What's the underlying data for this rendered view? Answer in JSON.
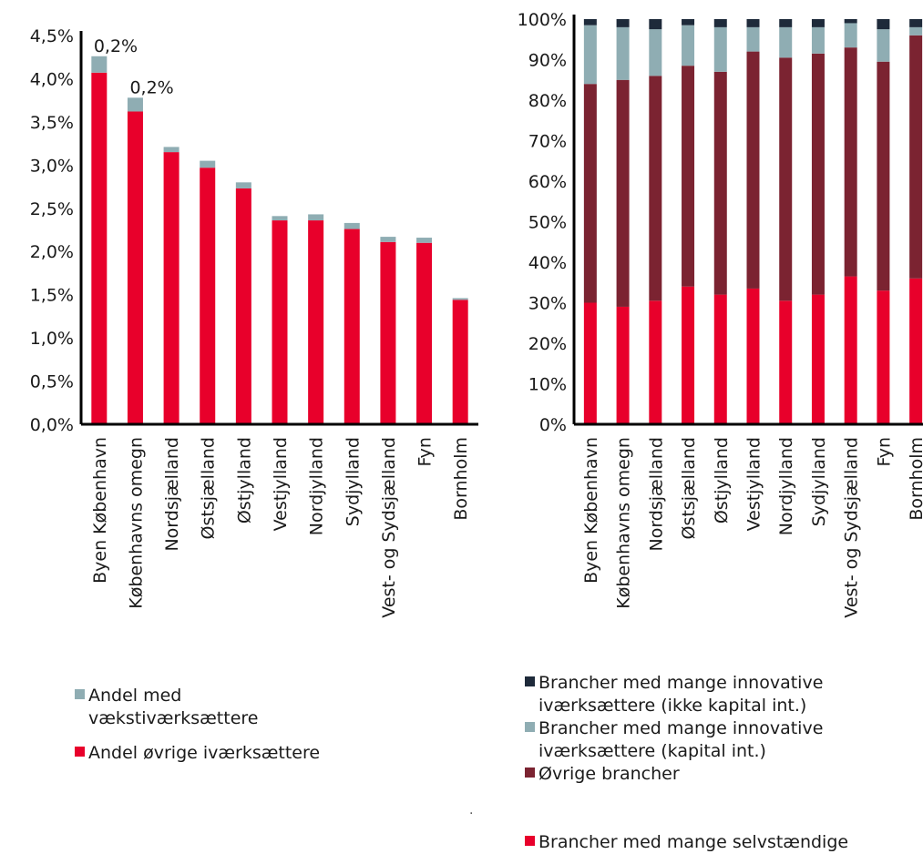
{
  "colors": {
    "red": "#e8002b",
    "teal": "#8fadb3",
    "maroon": "#7b2331",
    "navy": "#1e2a3a",
    "axis": "#000000"
  },
  "chart_data": [
    {
      "type": "bar",
      "stacked": true,
      "categories": [
        "Byen København",
        "Københavns omegn",
        "Nordsjælland",
        "Østsjælland",
        "Østjylland",
        "Vestjylland",
        "Nordjylland",
        "Sydjylland",
        "Vest- og Sydsjælland",
        "Fyn",
        "Bornholm"
      ],
      "series": [
        {
          "name": "Andel øvrige iværksættere",
          "color": "#e8002b",
          "values": [
            4.07,
            3.62,
            3.15,
            2.97,
            2.73,
            2.36,
            2.36,
            2.26,
            2.11,
            2.1,
            1.44
          ]
        },
        {
          "name": "Andel med vækstiværksættere",
          "color": "#8fadb3",
          "values": [
            0.19,
            0.16,
            0.06,
            0.08,
            0.07,
            0.05,
            0.07,
            0.07,
            0.06,
            0.06,
            0.02
          ]
        }
      ],
      "annotations": [
        {
          "category": "Byen København",
          "text": "0,2%"
        },
        {
          "category": "Københavns omegn",
          "text": "0,2%"
        }
      ],
      "yticks": [
        "0,0%",
        "0,5%",
        "1,0%",
        "1,5%",
        "2,0%",
        "2,5%",
        "3,0%",
        "3,5%",
        "4,0%",
        "4,5%"
      ],
      "ylim": [
        0,
        4.5
      ],
      "legend_order": [
        "Andel med vækstiværksættere",
        "Andel øvrige iværksættere"
      ],
      "legend_placement": "bottom"
    },
    {
      "type": "bar",
      "stacked": true,
      "percent": true,
      "categories": [
        "Byen København",
        "Københavns omegn",
        "Nordsjælland",
        "Østsjælland",
        "Østjylland",
        "Vestjylland",
        "Nordjylland",
        "Sydjylland",
        "Vest- og Sydsjælland",
        "Fyn",
        "Bornholm"
      ],
      "series": [
        {
          "name": "Brancher med mange selvstændige",
          "color": "#e8002b",
          "values": [
            30,
            29,
            30.5,
            34,
            32,
            33.5,
            30.5,
            32,
            36.5,
            33,
            36
          ]
        },
        {
          "name": "Øvrige brancher",
          "color": "#7b2331",
          "values": [
            54,
            56,
            55.5,
            54.5,
            55,
            58.5,
            60,
            59.5,
            56.5,
            56.5,
            60
          ]
        },
        {
          "name": "Brancher med mange innovative iværksættere (kapital int.)",
          "color": "#8fadb3",
          "values": [
            14.5,
            13,
            11.5,
            10,
            11,
            6,
            7.5,
            6.5,
            6,
            8,
            2
          ]
        },
        {
          "name": "Brancher med mange innovative iværksættere (ikke kapital int.)",
          "color": "#1e2a3a",
          "values": [
            1.5,
            2,
            2.5,
            1.5,
            2,
            2,
            2,
            2,
            1,
            2.5,
            2
          ]
        }
      ],
      "yticks": [
        "0%",
        "10%",
        "20%",
        "30%",
        "40%",
        "50%",
        "60%",
        "70%",
        "80%",
        "90%",
        "100%"
      ],
      "ylim": [
        0,
        100
      ],
      "legend_order": [
        "Brancher med mange innovative iværksættere (ikke kapital int.)",
        "Brancher med mange innovative iværksættere (kapital int.)",
        "Øvrige brancher",
        "Brancher med mange selvstændige"
      ],
      "legend_placement": "bottom"
    }
  ],
  "legend_left": [
    {
      "label_lines": [
        "Andel med",
        "vækstiværksættere"
      ],
      "color": "#8fadb3"
    },
    {
      "label_lines": [
        "Andel øvrige iværksættere"
      ],
      "color": "#e8002b"
    }
  ],
  "legend_right": [
    {
      "label_lines": [
        "Brancher med mange innovative",
        "iværksættere (ikke kapital int.)"
      ],
      "color": "#1e2a3a"
    },
    {
      "label_lines": [
        "Brancher med mange innovative",
        "iværksættere (kapital int.)"
      ],
      "color": "#8fadb3"
    },
    {
      "label_lines": [
        "Øvrige brancher"
      ],
      "color": "#7b2331"
    },
    {
      "label_lines": [
        "Brancher med mange selvstændige"
      ],
      "color": "#e8002b"
    }
  ],
  "stray_mark": "."
}
